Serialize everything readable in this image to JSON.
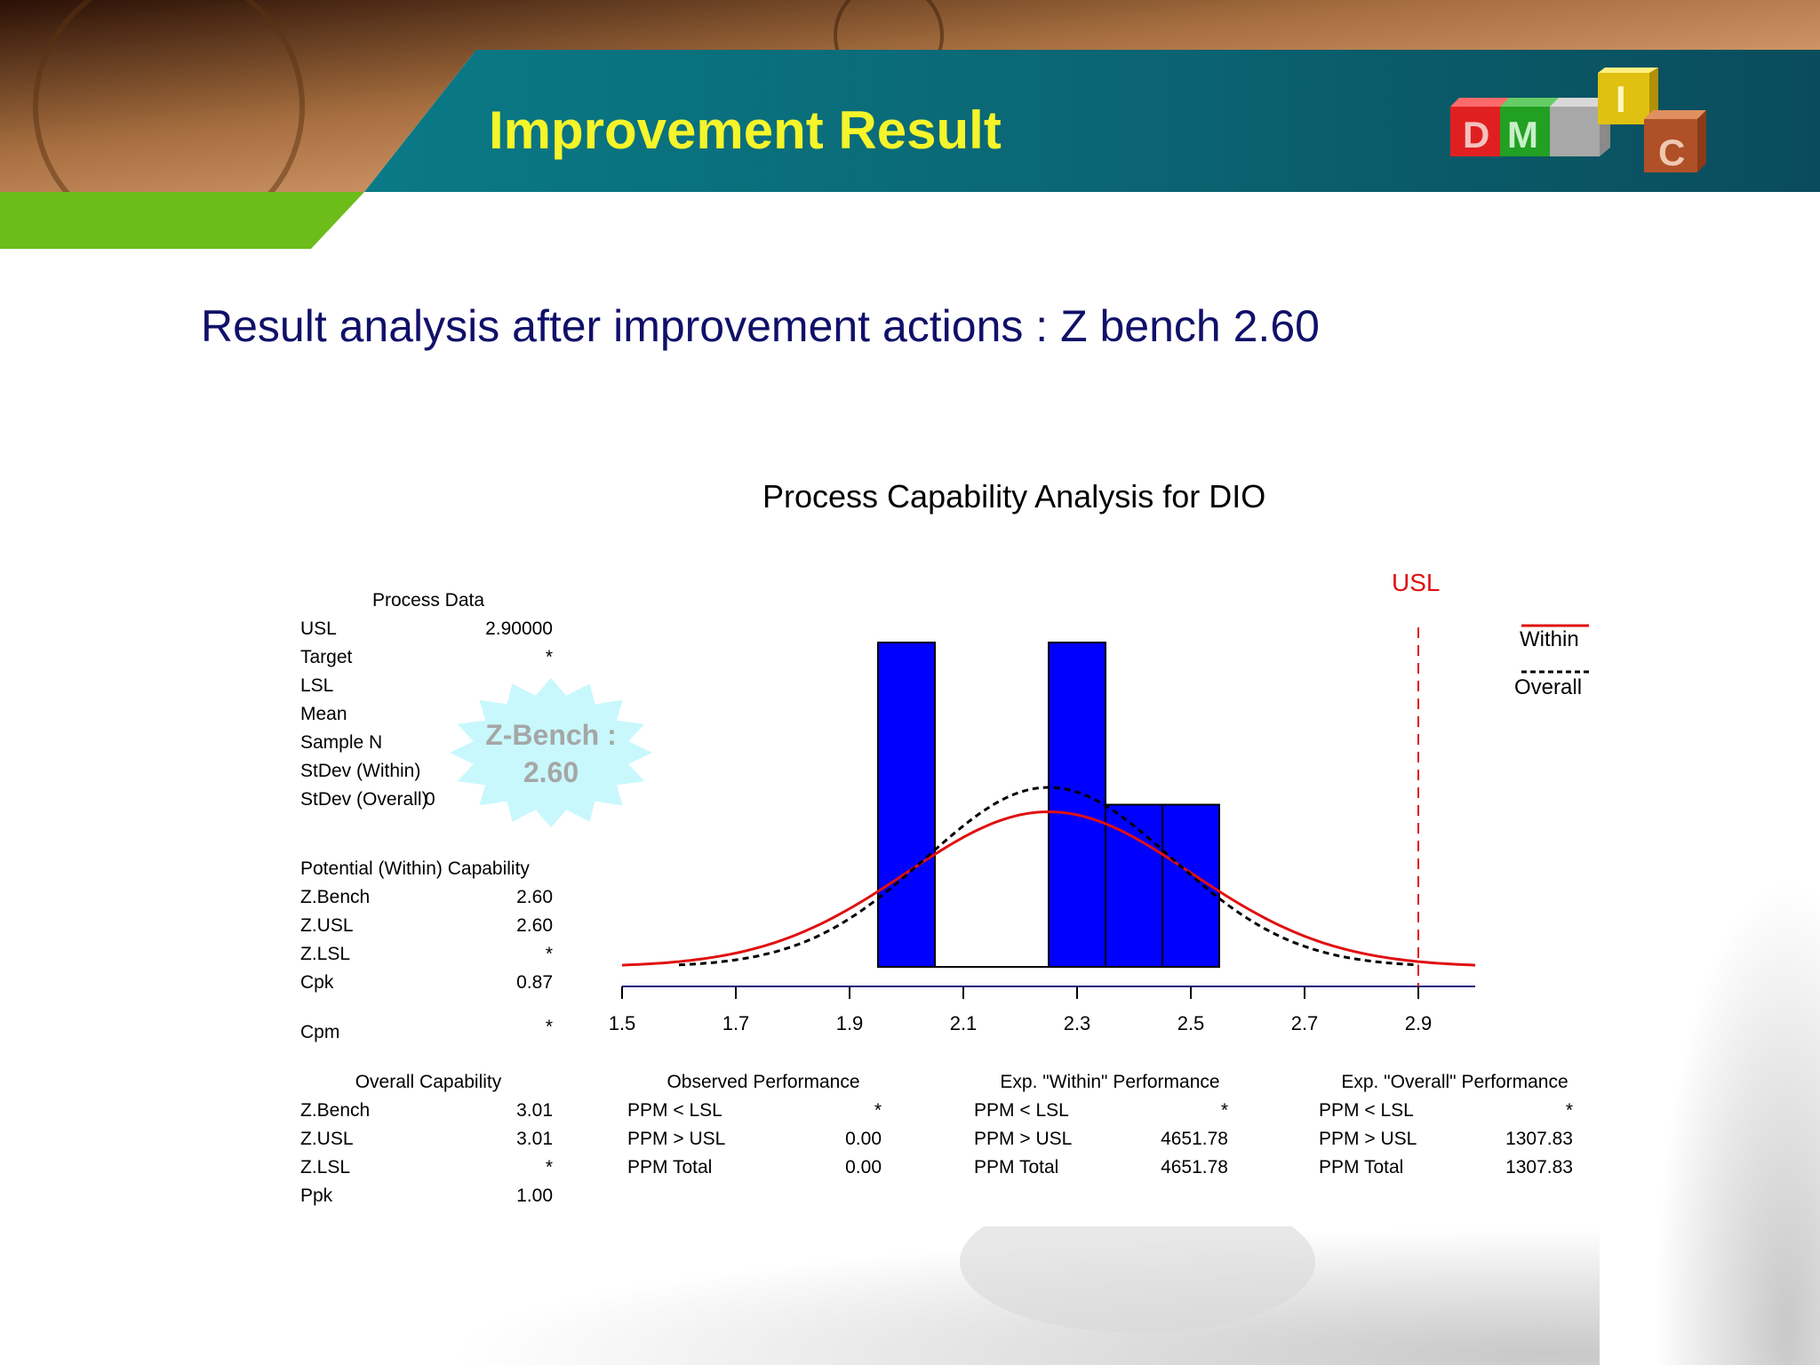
{
  "slide": {
    "title": "Improvement Result",
    "subtitle": "Result analysis after improvement actions :  Z bench 2.60",
    "logo_letters": [
      "D",
      "M",
      "",
      "I",
      "C"
    ],
    "colors": {
      "title": "#f5f52a",
      "subtitle": "#10106a",
      "banner_teal": "#0e6b78",
      "banner_green": "#6cbc1a",
      "bars": "#0000ff",
      "within_curve": "#e01010",
      "overall_curve": "#000000",
      "usl_line": "#e01010"
    }
  },
  "callout": {
    "line1": "Z-Bench :",
    "line2": "2.60"
  },
  "process_data": {
    "header": "Process Data",
    "rows": [
      {
        "label": "USL",
        "value": "2.90000"
      },
      {
        "label": "Target",
        "value": "*"
      },
      {
        "label": "LSL",
        "value": ""
      },
      {
        "label": "Mean",
        "value": ""
      },
      {
        "label": "Sample N",
        "value": ""
      },
      {
        "label": "StDev (Within)",
        "value": ""
      },
      {
        "label": "StDev (Overall)",
        "value": "0"
      }
    ]
  },
  "potential_capability": {
    "header": "Potential (Within) Capability",
    "rows": [
      {
        "label": "Z.Bench",
        "value": "2.60"
      },
      {
        "label": "Z.USL",
        "value": "2.60"
      },
      {
        "label": "Z.LSL",
        "value": "*"
      },
      {
        "label": "Cpk",
        "value": "0.87"
      },
      {
        "label": "Cpm",
        "value": "*"
      }
    ]
  },
  "overall_capability": {
    "header": "Overall Capability",
    "rows": [
      {
        "label": "Z.Bench",
        "value": "3.01"
      },
      {
        "label": "Z.USL",
        "value": "3.01"
      },
      {
        "label": "Z.LSL",
        "value": "*"
      },
      {
        "label": "Ppk",
        "value": "1.00"
      }
    ]
  },
  "observed_performance": {
    "header": "Observed Performance",
    "rows": [
      {
        "label": "PPM < LSL",
        "value": "*"
      },
      {
        "label": "PPM > USL",
        "value": "0.00"
      },
      {
        "label": "PPM Total",
        "value": "0.00"
      }
    ]
  },
  "within_performance": {
    "header": "Exp. \"Within\" Performance",
    "rows": [
      {
        "label": "PPM < LSL",
        "value": "*"
      },
      {
        "label": "PPM > USL",
        "value": "4651.78"
      },
      {
        "label": "PPM Total",
        "value": "4651.78"
      }
    ]
  },
  "overall_performance": {
    "header": "Exp. \"Overall\" Performance",
    "rows": [
      {
        "label": "PPM < LSL",
        "value": "*"
      },
      {
        "label": "PPM > USL",
        "value": "1307.83"
      },
      {
        "label": "PPM Total",
        "value": "1307.83"
      }
    ]
  },
  "chart_data": {
    "type": "bar",
    "title": "Process Capability Analysis for DIO",
    "x_ticks": [
      "1.5",
      "1.7",
      "1.9",
      "2.1",
      "2.3",
      "2.5",
      "2.7",
      "2.9"
    ],
    "xlim": [
      1.5,
      3.0
    ],
    "ylim": [
      0,
      2
    ],
    "bins": [
      {
        "from": 1.95,
        "to": 2.05,
        "count": 2
      },
      {
        "from": 2.05,
        "to": 2.15,
        "count": 0
      },
      {
        "from": 2.15,
        "to": 2.25,
        "count": 0
      },
      {
        "from": 2.25,
        "to": 2.35,
        "count": 2
      },
      {
        "from": 2.35,
        "to": 2.45,
        "count": 1
      },
      {
        "from": 2.45,
        "to": 2.55,
        "count": 1
      }
    ],
    "usl": 2.9,
    "usl_label": "USL",
    "legend": [
      {
        "name": "Within",
        "color": "#e01010",
        "style": "solid"
      },
      {
        "name": "Overall",
        "color": "#000000",
        "style": "dashed"
      }
    ],
    "legend_position": "top-right",
    "within_curve": {
      "mean": 2.25,
      "stdev": 0.25
    },
    "overall_curve": {
      "mean": 2.25,
      "stdev": 0.216
    },
    "grid": false
  }
}
